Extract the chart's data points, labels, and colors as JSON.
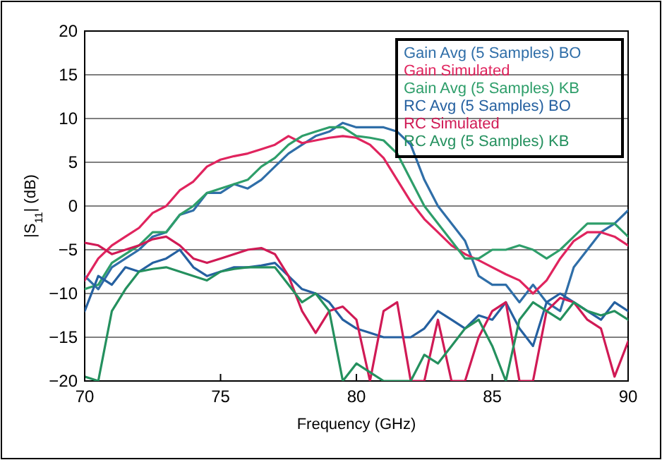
{
  "chart_data": {
    "type": "line",
    "xlabel": "Frequency (GHz)",
    "ylabel": "|S$_{11}$| (dB)",
    "x": [
      70,
      70.5,
      71,
      71.5,
      72,
      72.5,
      73,
      73.5,
      74,
      74.5,
      75,
      75.5,
      76,
      76.5,
      77,
      77.5,
      78,
      78.5,
      79,
      79.5,
      80,
      80.5,
      81,
      81.5,
      82,
      82.5,
      83,
      83.5,
      84,
      84.5,
      85,
      85.5,
      86,
      86.5,
      87,
      87.5,
      88,
      88.5,
      89,
      89.5,
      90
    ],
    "xlim": [
      70,
      90
    ],
    "xticks": [
      70,
      75,
      80,
      85,
      90
    ],
    "ylim": [
      -20,
      20
    ],
    "yticks": [
      -20,
      -15,
      -10,
      -5,
      0,
      5,
      10,
      15,
      20
    ],
    "grid": "y",
    "legend": "top right",
    "series": [
      {
        "name": "Gain Avg (5 Samples) BO",
        "color": "#2f6ea8",
        "values": [
          -8,
          -9.5,
          -7,
          -6,
          -5,
          -3.5,
          -3,
          -1,
          -0.5,
          1.5,
          1.5,
          2.5,
          2,
          3,
          4.5,
          6,
          7,
          8,
          8.5,
          9.5,
          9,
          9,
          9,
          8.5,
          7,
          3,
          0,
          -2,
          -4,
          -8,
          -9,
          -9,
          -11,
          -9,
          -11,
          -12,
          -7,
          -5,
          -3,
          -2,
          -0.5
        ]
      },
      {
        "name": "Gain Simulated",
        "color": "#e0245e",
        "values": [
          -8.5,
          -6,
          -4.5,
          -3.5,
          -2.5,
          -0.8,
          0,
          1.8,
          2.8,
          4.5,
          5.3,
          5.7,
          6,
          6.5,
          7,
          8,
          7.2,
          7.5,
          7.8,
          8,
          7.8,
          7,
          5.5,
          3,
          0.5,
          -1.5,
          -3,
          -4.5,
          -5.5,
          -6.2,
          -7,
          -7.8,
          -8.5,
          -10,
          -8.5,
          -6,
          -4,
          -3,
          -3,
          -3.5,
          -4.5
        ]
      },
      {
        "name": "Gain Avg (5 Samples) KB",
        "color": "#2e9e6a",
        "values": [
          -9.5,
          -9,
          -6.5,
          -5.5,
          -4.5,
          -3,
          -3,
          -1,
          0,
          1.5,
          2,
          2.5,
          3,
          4.5,
          5.5,
          7,
          8,
          8.5,
          9,
          9,
          8,
          7.8,
          7.5,
          6,
          3,
          0,
          -2,
          -4,
          -6,
          -6,
          -5,
          -5,
          -4.5,
          -5,
          -6,
          -5,
          -3.5,
          -2,
          -2,
          -2,
          -3.5
        ]
      },
      {
        "name": "RC Avg (5 Samples) BO",
        "color": "#2560a0",
        "values": [
          -12,
          -8,
          -9,
          -7,
          -7.5,
          -6.5,
          -6,
          -5,
          -7,
          -8,
          -7.5,
          -7,
          -7,
          -6.8,
          -6.5,
          -8,
          -9.5,
          -10,
          -11,
          -13,
          -14,
          -14.5,
          -15,
          -15,
          -15,
          -14,
          -12,
          -13,
          -14,
          -12.5,
          -13,
          -11,
          -14,
          -16,
          -11,
          -10,
          -11,
          -12,
          -13,
          -11,
          -12
        ]
      },
      {
        "name": "RC Simulated",
        "color": "#d01a55",
        "values": [
          -4.2,
          -4.5,
          -5.5,
          -5,
          -4.5,
          -3.8,
          -3.5,
          -4.5,
          -6,
          -6.5,
          -6,
          -5.5,
          -5,
          -4.8,
          -5.5,
          -8,
          -12,
          -14.5,
          -12,
          -11.5,
          -13,
          -20,
          -12,
          -11,
          -20,
          -20,
          -13,
          -20,
          -20,
          -15,
          -12,
          -11,
          -20,
          -20,
          -12,
          -10.5,
          -11,
          -13,
          -14,
          -19.5,
          -15.5
        ]
      },
      {
        "name": "RC Avg (5 Samples) KB",
        "color": "#24905e",
        "values": [
          -19.5,
          -20,
          -12,
          -9.5,
          -7.5,
          -7.2,
          -7,
          -7.5,
          -8,
          -8.5,
          -7.5,
          -7.2,
          -7,
          -7,
          -7,
          -9,
          -11,
          -10,
          -12,
          -20,
          -18,
          -19,
          -20,
          -20,
          -20,
          -17,
          -18,
          -16,
          -14,
          -13,
          -16,
          -20,
          -13,
          -11,
          -12,
          -13,
          -11,
          -12,
          -12.5,
          -12,
          -13
        ]
      }
    ]
  }
}
